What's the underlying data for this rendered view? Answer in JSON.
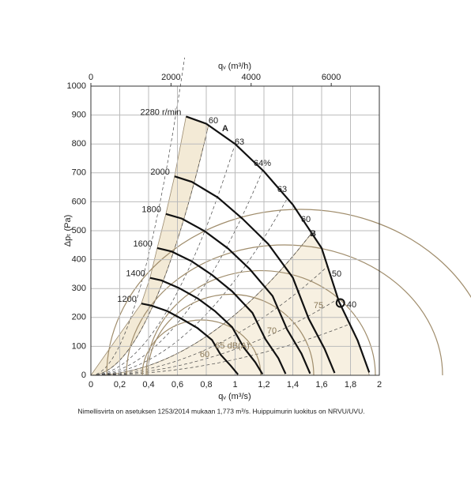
{
  "chart_data": {
    "type": "line",
    "x_label": "qᵥ (m³/s)",
    "x2_label": "qᵥ (m³/h)",
    "y_label": "Δpₜ (Pa)",
    "xlim": [
      0,
      2
    ],
    "x2lim": [
      0,
      7200
    ],
    "ylim": [
      0,
      1000
    ],
    "xticks": [
      0,
      {
        "value": 0.2,
        "label": "0,2"
      },
      {
        "value": 0.4,
        "label": "0,4"
      },
      {
        "value": 0.6,
        "label": "0,6"
      },
      {
        "value": 0.8,
        "label": "0,8"
      },
      1,
      {
        "value": 1.2,
        "label": "1,2"
      },
      {
        "value": 1.4,
        "label": "1,4"
      },
      {
        "value": 1.6,
        "label": "1,6"
      },
      {
        "value": 1.8,
        "label": "1,8"
      },
      2
    ],
    "x2ticks": [
      0,
      2000,
      4000,
      6000
    ],
    "yticks": [
      0,
      100,
      200,
      300,
      400,
      500,
      600,
      700,
      800,
      900,
      1000
    ],
    "grid": true,
    "series": [
      {
        "name": "2280 r/min",
        "color": "#111111",
        "x": [
          0.66,
          0.8,
          1.0,
          1.2,
          1.4,
          1.6,
          1.72,
          1.85,
          1.93
        ],
        "values": [
          895,
          870,
          800,
          705,
          590,
          440,
          255,
          120,
          10
        ]
      },
      {
        "name": "2000",
        "color": "#111111",
        "x": [
          0.58,
          0.7,
          0.88,
          1.05,
          1.23,
          1.4,
          1.51,
          1.62,
          1.69
        ],
        "values": [
          688,
          669,
          615,
          542,
          454,
          338,
          196,
          92,
          8
        ]
      },
      {
        "name": "1800",
        "color": "#111111",
        "x": [
          0.52,
          0.63,
          0.79,
          0.95,
          1.1,
          1.26,
          1.36,
          1.46,
          1.52
        ],
        "values": [
          558,
          542,
          498,
          439,
          368,
          274,
          159,
          75,
          6
        ]
      },
      {
        "name": "1600",
        "color": "#111111",
        "x": [
          0.46,
          0.56,
          0.7,
          0.84,
          0.98,
          1.12,
          1.21,
          1.3,
          1.35
        ],
        "values": [
          440,
          428,
          394,
          347,
          290,
          216,
          125,
          59,
          5
        ]
      },
      {
        "name": "1400",
        "color": "#111111",
        "x": [
          0.41,
          0.49,
          0.61,
          0.74,
          0.86,
          0.98,
          1.06,
          1.14,
          1.19
        ],
        "values": [
          337,
          328,
          302,
          266,
          222,
          166,
          96,
          45,
          4
        ]
      },
      {
        "name": "1200",
        "color": "#111111",
        "x": [
          0.35,
          0.42,
          0.53,
          0.63,
          0.74,
          0.84,
          0.9,
          0.97,
          1.02
        ],
        "values": [
          248,
          241,
          222,
          195,
          163,
          122,
          71,
          33,
          3
        ]
      }
    ],
    "operating_point": {
      "x": 1.73,
      "y": 250
    },
    "efficiency_labels": [
      "60",
      "A",
      "63",
      "64%",
      "63",
      "60",
      "B",
      "50",
      "40"
    ],
    "sound_labels": [
      "60",
      "65 dB(A)",
      "70",
      "75"
    ],
    "footnote": "Nimellisvirta on asetuksen 1253/2014 mukaan 1,773 m³/s. Huippuimurin luokitus on NRVU/UVU."
  }
}
